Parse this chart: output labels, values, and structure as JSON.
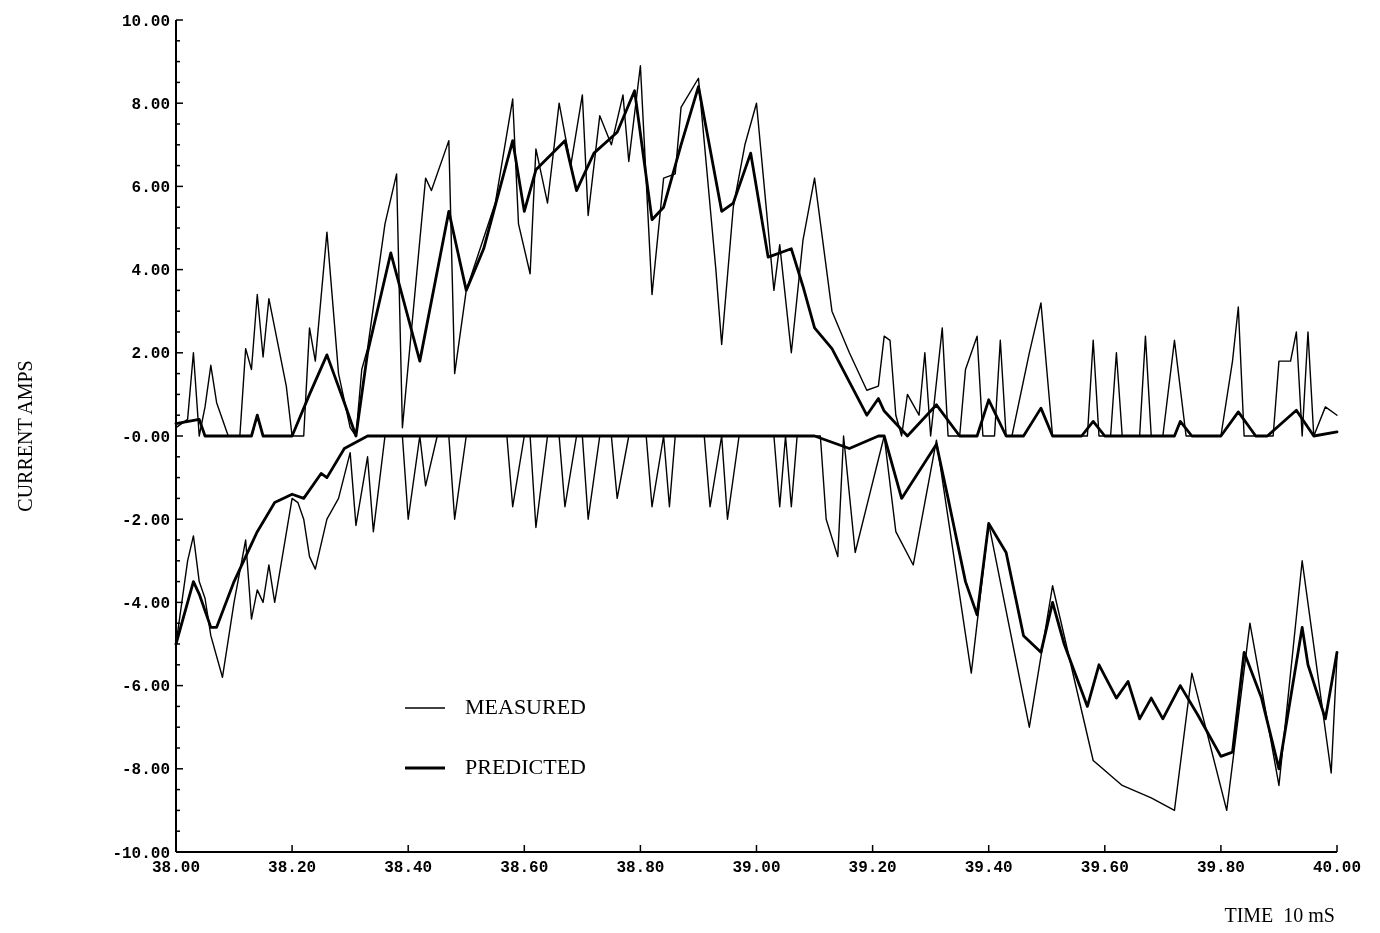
{
  "chart_data": {
    "type": "line",
    "xlabel": "TIME  10 mS",
    "ylabel": "CURRENT AMPS",
    "xlim": [
      38,
      40
    ],
    "ylim": [
      -10,
      10
    ],
    "xticks": [
      {
        "value": 38,
        "label": "38.00"
      },
      {
        "value": 38.2,
        "label": "38.20"
      },
      {
        "value": 38.4,
        "label": "38.40"
      },
      {
        "value": 38.6,
        "label": "38.60"
      },
      {
        "value": 38.8,
        "label": "38.80"
      },
      {
        "value": 39,
        "label": "39.00"
      },
      {
        "value": 39.2,
        "label": "39.20"
      },
      {
        "value": 39.4,
        "label": "39.40"
      },
      {
        "value": 39.6,
        "label": "39.60"
      },
      {
        "value": 39.8,
        "label": "39.80"
      },
      {
        "value": 40,
        "label": "40.00"
      }
    ],
    "yticks": [
      {
        "value": -10,
        "label": "-10.00"
      },
      {
        "value": -9.5,
        "label": null
      },
      {
        "value": -9,
        "label": null
      },
      {
        "value": -8.5,
        "label": null
      },
      {
        "value": -8,
        "label": "-8.00"
      },
      {
        "value": -7.5,
        "label": null
      },
      {
        "value": -7,
        "label": null
      },
      {
        "value": -6.5,
        "label": null
      },
      {
        "value": -6,
        "label": "-6.00"
      },
      {
        "value": -5.5,
        "label": null
      },
      {
        "value": -5,
        "label": null
      },
      {
        "value": -4.5,
        "label": null
      },
      {
        "value": -4,
        "label": "-4.00"
      },
      {
        "value": -3.5,
        "label": null
      },
      {
        "value": -3,
        "label": null
      },
      {
        "value": -2.5,
        "label": null
      },
      {
        "value": -2,
        "label": "-2.00"
      },
      {
        "value": -1.5,
        "label": null
      },
      {
        "value": -1,
        "label": null
      },
      {
        "value": -0.5,
        "label": null
      },
      {
        "value": 0,
        "label": "-0.00"
      },
      {
        "value": 0.5,
        "label": null
      },
      {
        "value": 1,
        "label": null
      },
      {
        "value": 1.5,
        "label": null
      },
      {
        "value": 2,
        "label": "2.00"
      },
      {
        "value": 2.5,
        "label": null
      },
      {
        "value": 3,
        "label": null
      },
      {
        "value": 3.5,
        "label": null
      },
      {
        "value": 4,
        "label": "4.00"
      },
      {
        "value": 4.5,
        "label": null
      },
      {
        "value": 5,
        "label": null
      },
      {
        "value": 5.5,
        "label": null
      },
      {
        "value": 6,
        "label": "6.00"
      },
      {
        "value": 6.5,
        "label": null
      },
      {
        "value": 7,
        "label": null
      },
      {
        "value": 7.5,
        "label": null
      },
      {
        "value": 8,
        "label": "8.00"
      },
      {
        "value": 8.5,
        "label": null
      },
      {
        "value": 9,
        "label": null
      },
      {
        "value": 9.5,
        "label": null
      },
      {
        "value": 10,
        "label": "10.00"
      }
    ],
    "legend": "bottom left",
    "grid": false,
    "series": [
      {
        "name": "MEASURED",
        "color": "#000000",
        "x": [
          38,
          38.02,
          38.03,
          38.04,
          38.05,
          38.06,
          38.07,
          38.09,
          38.11,
          38.12,
          38.13,
          38.14,
          38.15,
          38.16,
          38.19,
          38.2,
          38.22,
          38.23,
          38.24,
          38.26,
          38.28,
          38.3,
          38.31,
          38.32,
          38.33,
          38.36,
          38.38,
          38.39,
          38.43,
          38.44,
          38.47,
          38.48,
          38.5,
          38.55,
          38.58,
          38.59,
          38.61,
          38.62,
          38.64,
          38.66,
          38.68,
          38.7,
          38.71,
          38.73,
          38.75,
          38.77,
          38.78,
          38.8,
          38.82,
          38.84,
          38.86,
          38.87,
          38.9,
          38.93,
          38.94,
          38.96,
          38.98,
          39,
          39.03,
          39.04,
          39.06,
          39.08,
          39.1,
          39.13,
          39.16,
          39.19,
          39.21,
          39.22,
          39.23,
          39.24,
          39.25,
          39.26,
          39.28,
          39.29,
          39.3,
          39.32,
          39.33,
          39.35,
          39.36,
          39.38,
          39.39,
          39.41,
          39.42,
          39.43,
          39.44,
          39.47,
          39.49,
          39.51,
          39.57,
          39.58,
          39.59,
          39.61,
          39.62,
          39.63,
          39.66,
          39.67,
          39.68,
          39.7,
          39.72,
          39.74,
          39.8,
          39.82,
          39.83,
          39.84,
          39.89,
          39.9,
          39.92,
          39.93,
          39.94,
          39.95,
          39.96,
          39.98,
          40
        ],
        "values": [
          0.2,
          0.4,
          2.0,
          0,
          0.7,
          1.7,
          0.8,
          0,
          0,
          2.1,
          1.6,
          3.4,
          1.9,
          3.3,
          1.2,
          0,
          0,
          2.6,
          1.8,
          4.9,
          1.5,
          0.2,
          0,
          1.6,
          2.1,
          5.1,
          6.3,
          0.2,
          6.2,
          5.9,
          7.1,
          1.5,
          3.5,
          5.6,
          8.1,
          5.1,
          3.9,
          6.9,
          5.6,
          8.0,
          6.5,
          8.2,
          5.3,
          7.7,
          7.0,
          8.2,
          6.6,
          8.9,
          3.4,
          6.2,
          6.3,
          7.9,
          8.6,
          4.0,
          2.2,
          5.5,
          7.0,
          8.0,
          3.5,
          4.6,
          2.0,
          4.7,
          6.2,
          3.0,
          2.0,
          1.1,
          1.2,
          2.4,
          2.3,
          0.5,
          0,
          1.0,
          0.5,
          2.0,
          0,
          2.6,
          0,
          0,
          1.6,
          2.4,
          0,
          0,
          2.3,
          0,
          0,
          2.0,
          3.2,
          0,
          0,
          2.3,
          0,
          0,
          2.0,
          0,
          0,
          2.4,
          0,
          0,
          2.3,
          0,
          0,
          1.8,
          3.1,
          0,
          0,
          1.8,
          1.8,
          2.5,
          0,
          2.5,
          0,
          0.7,
          0.5
        ]
      },
      {
        "name": "PREDICTED",
        "color": "#000000",
        "x": [
          38,
          38.04,
          38.05,
          38.13,
          38.14,
          38.15,
          38.2,
          38.23,
          38.26,
          38.29,
          38.31,
          38.33,
          38.37,
          38.42,
          38.47,
          38.5,
          38.53,
          38.58,
          38.6,
          38.62,
          38.67,
          38.69,
          38.72,
          38.76,
          38.79,
          38.82,
          38.84,
          38.87,
          38.9,
          38.94,
          38.96,
          38.99,
          39.02,
          39.06,
          39.08,
          39.1,
          39.13,
          39.16,
          39.19,
          39.21,
          39.22,
          39.26,
          39.31,
          39.35,
          39.38,
          39.4,
          39.43,
          39.46,
          39.49,
          39.51,
          39.56,
          39.58,
          39.6,
          39.72,
          39.73,
          39.75,
          39.8,
          39.83,
          39.86,
          39.88,
          39.93,
          39.96,
          40
        ],
        "values": [
          0.3,
          0.4,
          0,
          0,
          0.5,
          0,
          0,
          1.0,
          1.95,
          0.8,
          0,
          2.0,
          4.4,
          1.8,
          5.4,
          3.5,
          4.5,
          7.1,
          5.4,
          6.4,
          7.1,
          5.9,
          6.8,
          7.3,
          8.3,
          5.2,
          5.5,
          7.0,
          8.4,
          5.4,
          5.6,
          6.8,
          4.3,
          4.5,
          3.6,
          2.6,
          2.1,
          1.3,
          0.5,
          0.9,
          0.6,
          0,
          0.75,
          0,
          0,
          0.87,
          0,
          0,
          0.67,
          0,
          0,
          0.35,
          0,
          0,
          0.35,
          0,
          0,
          0.58,
          0,
          0,
          0.62,
          0,
          0.1
        ]
      },
      {
        "color": "#000000",
        "x": [
          38,
          38.02,
          38.03,
          38.04,
          38.05,
          38.06,
          38.08,
          38.1,
          38.12,
          38.13,
          38.14,
          38.15,
          38.16,
          38.17,
          38.2,
          38.21,
          38.22,
          38.23,
          38.24,
          38.26,
          38.28,
          38.3,
          38.31,
          38.33,
          38.34,
          38.36,
          38.39,
          38.4,
          38.42,
          38.43,
          38.45,
          38.47,
          38.48,
          38.5,
          38.57,
          38.58,
          38.6,
          38.61,
          38.62,
          38.64,
          38.66,
          38.67,
          38.69,
          38.7,
          38.71,
          38.73,
          38.75,
          38.76,
          38.78,
          38.81,
          38.82,
          38.84,
          38.85,
          38.86,
          38.91,
          38.92,
          38.94,
          38.95,
          38.97,
          39.03,
          39.04,
          39.05,
          39.06,
          39.07,
          39.11,
          39.12,
          39.14,
          39.15,
          39.17,
          39.22,
          39.24,
          39.27,
          39.31,
          39.37,
          39.4,
          39.47,
          39.51,
          39.58,
          39.63,
          39.68,
          39.72,
          39.75,
          39.81,
          39.85,
          39.9,
          39.94,
          39.99,
          40
        ],
        "values": [
          -5.0,
          -3.0,
          -2.4,
          -3.5,
          -3.9,
          -4.8,
          -5.8,
          -4.0,
          -2.5,
          -4.4,
          -3.7,
          -4.0,
          -3.1,
          -4.0,
          -1.5,
          -1.6,
          -2.0,
          -2.9,
          -3.2,
          -2.0,
          -1.5,
          -0.4,
          -2.15,
          -0.5,
          -2.3,
          0,
          0,
          -2.0,
          0,
          -1.2,
          0,
          0,
          -2.0,
          0,
          0,
          -1.7,
          0,
          0,
          -2.2,
          0,
          0,
          -1.7,
          0,
          0,
          -2.0,
          0,
          0,
          -1.5,
          0,
          0,
          -1.7,
          0,
          -1.7,
          0,
          0,
          -1.7,
          0,
          -2.0,
          0,
          0,
          -1.7,
          0,
          -1.7,
          0,
          0,
          -2.0,
          -2.9,
          0,
          -2.8,
          0,
          -2.3,
          -3.1,
          -0.1,
          -5.7,
          -2.1,
          -7.0,
          -3.6,
          -7.8,
          -8.4,
          -8.7,
          -9.0,
          -5.7,
          -9.0,
          -4.5,
          -8.4,
          -3.0,
          -8.1,
          -5.3
        ]
      },
      {
        "color": "#000000",
        "x": [
          38,
          38.03,
          38.04,
          38.06,
          38.07,
          38.1,
          38.14,
          38.17,
          38.2,
          38.22,
          38.25,
          38.26,
          38.29,
          38.33,
          39.1,
          39.16,
          39.21,
          39.22,
          39.25,
          39.31,
          39.33,
          39.36,
          39.38,
          39.4,
          39.43,
          39.46,
          39.49,
          39.51,
          39.53,
          39.57,
          39.59,
          39.62,
          39.64,
          39.66,
          39.68,
          39.7,
          39.73,
          39.76,
          39.8,
          39.82,
          39.84,
          39.87,
          39.9,
          39.94,
          39.95,
          39.98,
          40
        ],
        "values": [
          -5.0,
          -3.5,
          -3.8,
          -4.6,
          -4.6,
          -3.5,
          -2.3,
          -1.6,
          -1.4,
          -1.5,
          -0.9,
          -1.0,
          -0.3,
          0,
          0,
          -0.3,
          0,
          0,
          -1.5,
          -0.2,
          -1.5,
          -3.5,
          -4.3,
          -2.1,
          -2.8,
          -4.8,
          -5.2,
          -4.0,
          -5.0,
          -6.5,
          -5.5,
          -6.3,
          -5.9,
          -6.8,
          -6.3,
          -6.8,
          -6.0,
          -6.7,
          -7.7,
          -7.6,
          -5.2,
          -6.3,
          -8.0,
          -4.6,
          -5.5,
          -6.8,
          -5.2
        ]
      }
    ]
  }
}
